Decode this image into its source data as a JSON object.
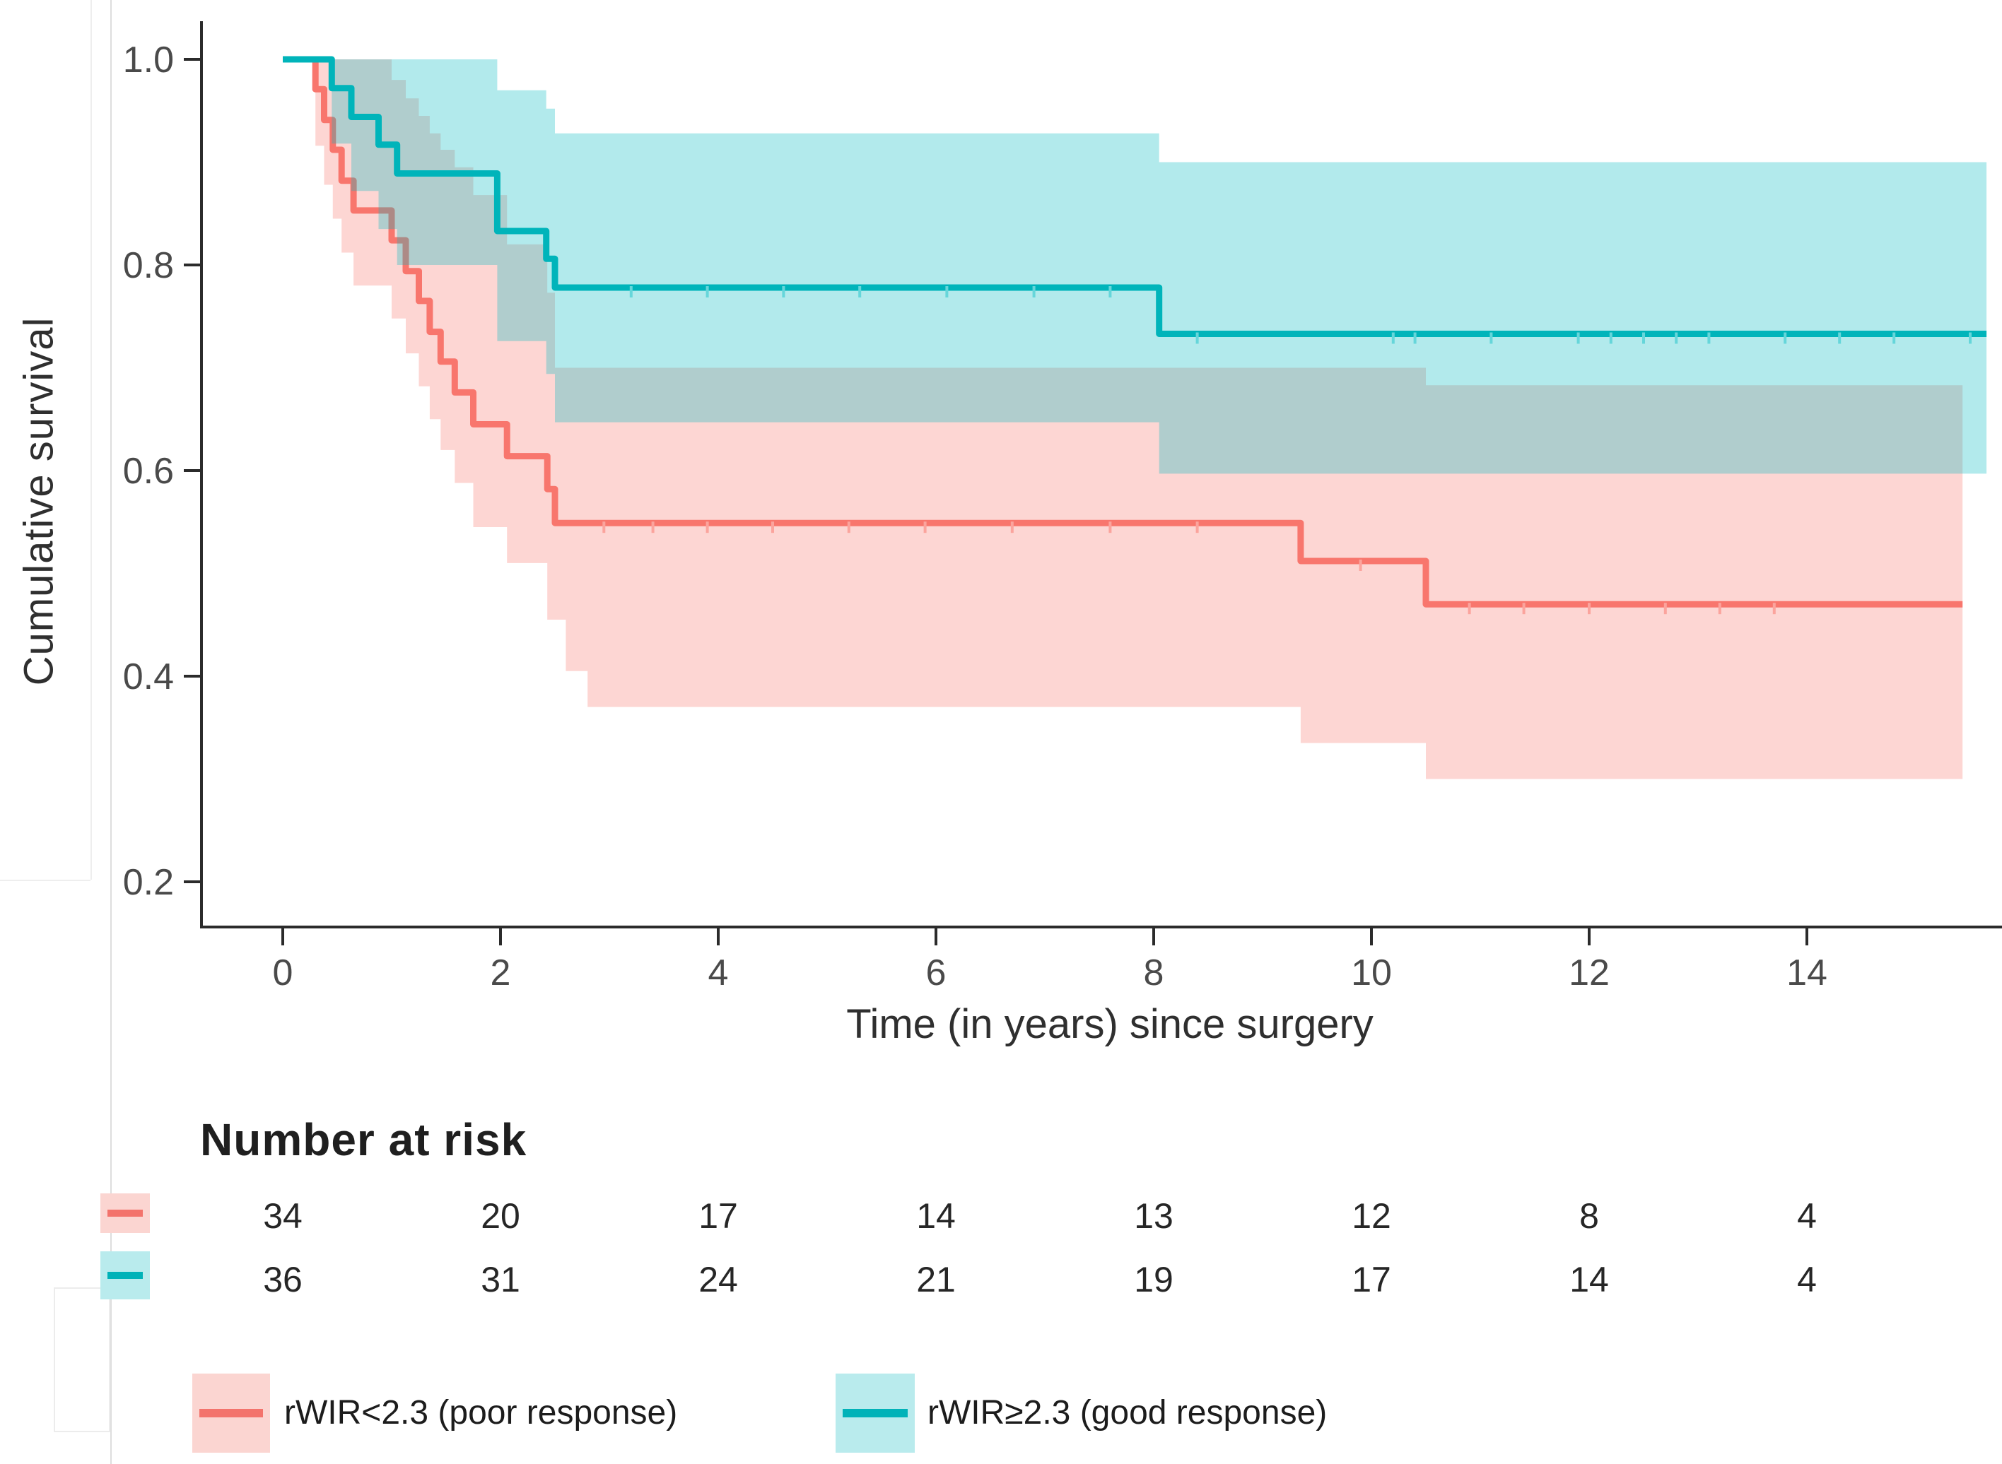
{
  "colors": {
    "poor_line": "#f8766d",
    "poor_band": "#f8766d",
    "poor_censor": "#fba49d",
    "good_line": "#00b4ba",
    "good_band": "#00b9bf",
    "good_censor": "#66d6da",
    "axis": "#2b2b2b",
    "tick_label": "#4a4a4a"
  },
  "chart_data": {
    "type": "line",
    "subtype": "kaplan-meier-step-with-ci",
    "title": "",
    "xlabel": "Time (in years) since surgery",
    "ylabel": "Cumulative survival",
    "xlim": [
      -0.75,
      15.79
    ],
    "ylim": [
      0.156,
      1.04
    ],
    "grid": false,
    "legend_position": "bottom",
    "x_ticks": {
      "values": [
        0,
        2,
        4,
        6,
        8,
        10,
        12,
        14
      ],
      "labels": [
        "0",
        "2",
        "4",
        "6",
        "8",
        "10",
        "12",
        "14"
      ]
    },
    "y_ticks": {
      "values": [
        1.0,
        0.8,
        0.6,
        0.4,
        0.2
      ],
      "labels": [
        "1.0",
        "0.8",
        "0.6",
        "0.4",
        "0.2"
      ]
    },
    "series": [
      {
        "name": "rWIR<2.3 (poor response)",
        "n_start": 34,
        "start": [
          0,
          1.0
        ],
        "end_time": 15.43,
        "steps": [
          [
            0.3,
            0.971
          ],
          [
            0.38,
            0.941
          ],
          [
            0.46,
            0.912
          ],
          [
            0.54,
            0.882
          ],
          [
            0.65,
            0.853
          ],
          [
            1.0,
            0.824
          ],
          [
            1.13,
            0.794
          ],
          [
            1.25,
            0.765
          ],
          [
            1.35,
            0.735
          ],
          [
            1.45,
            0.706
          ],
          [
            1.58,
            0.676
          ],
          [
            1.75,
            0.645
          ],
          [
            2.06,
            0.614
          ],
          [
            2.43,
            0.582
          ],
          [
            2.5,
            0.549
          ],
          [
            9.35,
            0.512
          ],
          [
            10.5,
            0.47
          ]
        ],
        "ci_upper": [
          [
            1.0,
            0.98
          ],
          [
            1.13,
            0.962
          ],
          [
            1.25,
            0.945
          ],
          [
            1.35,
            0.928
          ],
          [
            1.45,
            0.912
          ],
          [
            1.58,
            0.895
          ],
          [
            1.75,
            0.868
          ],
          [
            2.06,
            0.82
          ],
          [
            2.43,
            0.773
          ],
          [
            2.5,
            0.7
          ],
          [
            10.5,
            0.683
          ]
        ],
        "ci_lower": [
          [
            0.3,
            0.916
          ],
          [
            0.38,
            0.878
          ],
          [
            0.46,
            0.845
          ],
          [
            0.54,
            0.812
          ],
          [
            0.65,
            0.78
          ],
          [
            1.0,
            0.748
          ],
          [
            1.13,
            0.714
          ],
          [
            1.25,
            0.682
          ],
          [
            1.35,
            0.65
          ],
          [
            1.45,
            0.62
          ],
          [
            1.58,
            0.588
          ],
          [
            1.75,
            0.545
          ],
          [
            2.06,
            0.51
          ],
          [
            2.43,
            0.455
          ],
          [
            2.6,
            0.405
          ],
          [
            2.8,
            0.37
          ],
          [
            9.35,
            0.335
          ],
          [
            10.5,
            0.3
          ]
        ],
        "censor_times": [
          2.95,
          3.4,
          3.9,
          4.5,
          5.2,
          5.9,
          6.7,
          7.6,
          8.4,
          9.9,
          10.9,
          11.4,
          12.0,
          12.7,
          13.2,
          13.7
        ]
      },
      {
        "name": "rWIR≥2.3 (good response)",
        "n_start": 36,
        "start": [
          0,
          1.0
        ],
        "end_time": 15.65,
        "steps": [
          [
            0.45,
            0.972
          ],
          [
            0.63,
            0.944
          ],
          [
            0.88,
            0.917
          ],
          [
            1.05,
            0.889
          ],
          [
            1.97,
            0.833
          ],
          [
            2.42,
            0.806
          ],
          [
            2.5,
            0.778
          ],
          [
            8.05,
            0.733
          ]
        ],
        "ci_upper": [
          [
            1.97,
            0.97
          ],
          [
            2.42,
            0.952
          ],
          [
            2.5,
            0.928
          ],
          [
            8.05,
            0.9
          ]
        ],
        "ci_lower": [
          [
            0.45,
            0.918
          ],
          [
            0.63,
            0.872
          ],
          [
            0.88,
            0.835
          ],
          [
            1.05,
            0.8
          ],
          [
            1.97,
            0.726
          ],
          [
            2.42,
            0.694
          ],
          [
            2.5,
            0.647
          ],
          [
            8.05,
            0.597
          ]
        ],
        "censor_times": [
          3.2,
          3.9,
          4.6,
          5.3,
          6.1,
          6.9,
          7.6,
          8.4,
          10.2,
          10.4,
          11.1,
          11.9,
          12.2,
          12.5,
          12.8,
          13.1,
          13.8,
          14.3,
          14.8,
          15.5
        ]
      }
    ]
  },
  "risk_table": {
    "title": "Number at risk",
    "times": [
      0,
      2,
      4,
      6,
      8,
      10,
      12,
      14
    ],
    "rows": [
      {
        "group": "rWIR<2.3 (poor response)",
        "counts": [
          "34",
          "20",
          "17",
          "14",
          "13",
          "12",
          "8",
          "4"
        ]
      },
      {
        "group": "rWIR≥2.3 (good response)",
        "counts": [
          "36",
          "31",
          "24",
          "21",
          "19",
          "17",
          "14",
          "4"
        ]
      }
    ]
  },
  "legend": {
    "items": [
      {
        "label": "rWIR<2.3 (poor response)"
      },
      {
        "label": "rWIR≥2.3 (good response)"
      }
    ]
  }
}
